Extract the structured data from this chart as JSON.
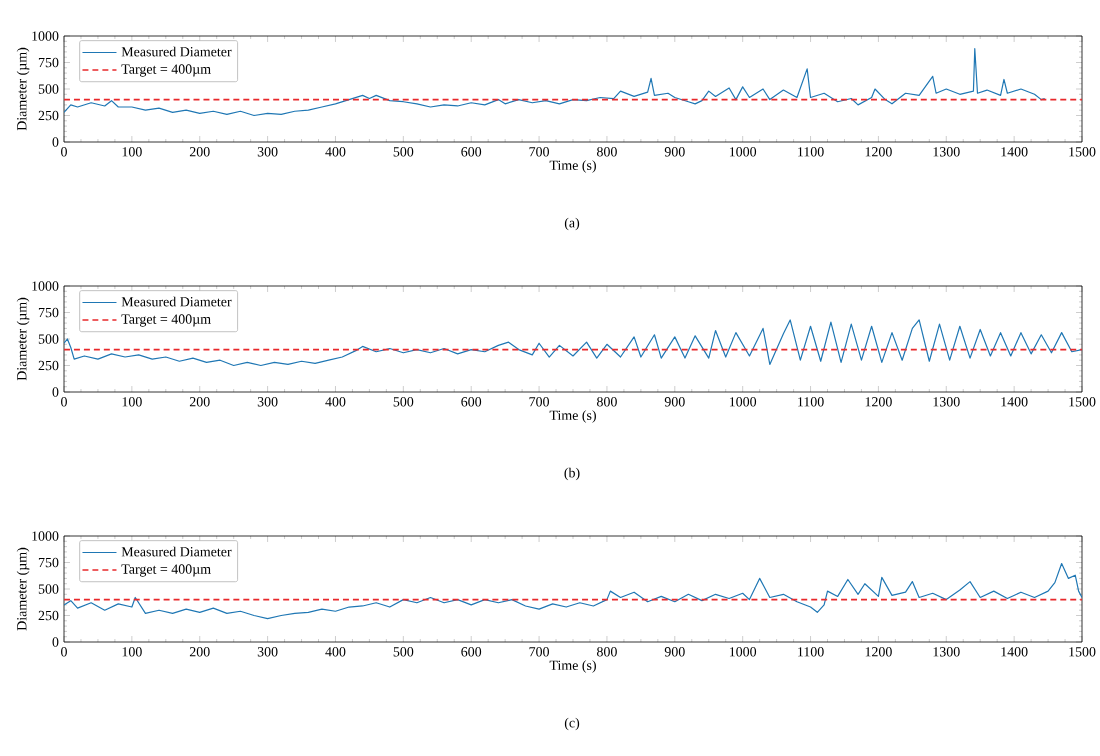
{
  "chart_data": [
    {
      "type": "line",
      "xlabel": "Time (s)",
      "ylabel": "Diameter (µm)",
      "xlim": [
        0,
        1500
      ],
      "ylim": [
        0,
        1000
      ],
      "xticks": [
        0,
        100,
        200,
        300,
        400,
        500,
        600,
        700,
        800,
        900,
        1000,
        1100,
        1200,
        1300,
        1400,
        1500
      ],
      "yticks": [
        0,
        250,
        500,
        750,
        1000
      ],
      "legend": "top left",
      "annotations": [
        "(a)"
      ],
      "series": [
        {
          "name": "Measured Diameter",
          "color": "#1f77b4",
          "x": [
            0,
            10,
            20,
            40,
            60,
            70,
            80,
            100,
            120,
            140,
            160,
            180,
            200,
            220,
            240,
            260,
            280,
            300,
            320,
            340,
            360,
            380,
            400,
            420,
            440,
            450,
            460,
            480,
            500,
            520,
            540,
            560,
            580,
            600,
            620,
            640,
            650,
            670,
            690,
            710,
            730,
            750,
            770,
            790,
            810,
            820,
            840,
            860,
            865,
            870,
            890,
            900,
            920,
            930,
            940,
            950,
            960,
            980,
            990,
            1000,
            1010,
            1030,
            1040,
            1060,
            1080,
            1095,
            1100,
            1120,
            1140,
            1160,
            1170,
            1190,
            1195,
            1210,
            1220,
            1240,
            1260,
            1280,
            1285,
            1300,
            1320,
            1340,
            1342,
            1346,
            1360,
            1380,
            1385,
            1390,
            1410,
            1430,
            1440,
            1445
          ],
          "values": [
            280,
            350,
            330,
            370,
            340,
            390,
            330,
            330,
            300,
            320,
            280,
            300,
            270,
            290,
            260,
            290,
            250,
            270,
            260,
            290,
            300,
            330,
            360,
            400,
            440,
            410,
            440,
            390,
            380,
            360,
            330,
            350,
            340,
            370,
            350,
            400,
            360,
            400,
            370,
            390,
            360,
            400,
            390,
            420,
            410,
            480,
            430,
            470,
            600,
            440,
            460,
            420,
            380,
            360,
            390,
            480,
            430,
            510,
            400,
            520,
            420,
            500,
            400,
            490,
            420,
            690,
            420,
            460,
            380,
            410,
            350,
            420,
            500,
            400,
            360,
            460,
            440,
            620,
            460,
            500,
            450,
            480,
            880,
            460,
            490,
            440,
            590,
            460,
            500,
            450,
            400,
            410
          ]
        }
      ],
      "ref_lines": [
        {
          "axis": "y",
          "value": 400,
          "label": "Target = 400µm",
          "color": "#e8282b",
          "line_style": "dashed"
        }
      ]
    },
    {
      "type": "line",
      "xlabel": "Time (s)",
      "ylabel": "Diameter (µm)",
      "xlim": [
        0,
        1500
      ],
      "ylim": [
        0,
        1000
      ],
      "xticks": [
        0,
        100,
        200,
        300,
        400,
        500,
        600,
        700,
        800,
        900,
        1000,
        1100,
        1200,
        1300,
        1400,
        1500
      ],
      "yticks": [
        0,
        250,
        500,
        750,
        1000
      ],
      "legend": "top left",
      "annotations": [
        "(b)"
      ],
      "series": [
        {
          "name": "Measured Diameter",
          "color": "#1f77b4",
          "x": [
            0,
            5,
            10,
            15,
            30,
            50,
            70,
            90,
            110,
            130,
            150,
            170,
            190,
            210,
            230,
            250,
            270,
            290,
            310,
            330,
            350,
            370,
            390,
            410,
            430,
            440,
            460,
            480,
            500,
            520,
            540,
            560,
            580,
            600,
            620,
            640,
            655,
            670,
            690,
            700,
            715,
            730,
            750,
            770,
            785,
            800,
            820,
            840,
            850,
            870,
            880,
            900,
            915,
            930,
            950,
            960,
            975,
            990,
            1010,
            1030,
            1040,
            1060,
            1070,
            1085,
            1100,
            1115,
            1130,
            1145,
            1160,
            1175,
            1190,
            1205,
            1220,
            1235,
            1250,
            1260,
            1275,
            1290,
            1305,
            1320,
            1335,
            1350,
            1365,
            1380,
            1395,
            1410,
            1425,
            1440,
            1455,
            1470,
            1485,
            1500
          ],
          "values": [
            460,
            500,
            420,
            310,
            340,
            310,
            360,
            330,
            350,
            310,
            330,
            290,
            320,
            280,
            300,
            250,
            280,
            250,
            280,
            260,
            290,
            270,
            300,
            330,
            390,
            430,
            380,
            410,
            370,
            400,
            370,
            410,
            360,
            400,
            380,
            440,
            470,
            400,
            350,
            460,
            330,
            440,
            340,
            470,
            320,
            450,
            330,
            520,
            330,
            540,
            320,
            520,
            320,
            530,
            320,
            580,
            330,
            560,
            340,
            600,
            260,
            550,
            680,
            300,
            620,
            290,
            660,
            280,
            640,
            300,
            620,
            280,
            560,
            300,
            600,
            680,
            290,
            640,
            300,
            620,
            320,
            590,
            340,
            560,
            340,
            560,
            360,
            540,
            370,
            560,
            380,
            400
          ]
        }
      ],
      "ref_lines": [
        {
          "axis": "y",
          "value": 400,
          "label": "Target = 400µm",
          "color": "#e8282b",
          "line_style": "dashed"
        }
      ]
    },
    {
      "type": "line",
      "xlabel": "Time (s)",
      "ylabel": "Diameter (µm)",
      "xlim": [
        0,
        1500
      ],
      "ylim": [
        0,
        1000
      ],
      "xticks": [
        0,
        100,
        200,
        300,
        400,
        500,
        600,
        700,
        800,
        900,
        1000,
        1100,
        1200,
        1300,
        1400,
        1500
      ],
      "yticks": [
        0,
        250,
        500,
        750,
        1000
      ],
      "legend": "top left",
      "annotations": [
        "(c)"
      ],
      "series": [
        {
          "name": "Measured Diameter",
          "color": "#1f77b4",
          "x": [
            0,
            10,
            20,
            40,
            60,
            80,
            100,
            105,
            120,
            140,
            160,
            180,
            200,
            220,
            240,
            260,
            280,
            300,
            320,
            340,
            360,
            380,
            400,
            420,
            440,
            460,
            480,
            500,
            520,
            540,
            560,
            580,
            600,
            620,
            640,
            660,
            680,
            700,
            720,
            740,
            760,
            780,
            800,
            805,
            820,
            840,
            860,
            880,
            900,
            920,
            940,
            960,
            980,
            1000,
            1010,
            1025,
            1040,
            1060,
            1080,
            1100,
            1110,
            1120,
            1125,
            1140,
            1155,
            1170,
            1180,
            1200,
            1205,
            1220,
            1240,
            1250,
            1260,
            1280,
            1300,
            1320,
            1335,
            1350,
            1370,
            1390,
            1410,
            1430,
            1450,
            1460,
            1470,
            1480,
            1490,
            1495,
            1500
          ],
          "values": [
            350,
            390,
            320,
            370,
            300,
            360,
            330,
            420,
            270,
            300,
            270,
            310,
            280,
            320,
            270,
            290,
            250,
            220,
            250,
            270,
            280,
            310,
            290,
            330,
            340,
            370,
            330,
            400,
            370,
            420,
            370,
            400,
            350,
            400,
            370,
            400,
            340,
            310,
            360,
            330,
            370,
            340,
            400,
            480,
            420,
            470,
            380,
            430,
            380,
            450,
            390,
            450,
            410,
            460,
            400,
            600,
            420,
            450,
            380,
            330,
            280,
            350,
            480,
            430,
            590,
            450,
            550,
            430,
            610,
            440,
            470,
            570,
            420,
            460,
            400,
            490,
            570,
            420,
            480,
            410,
            470,
            420,
            480,
            560,
            740,
            600,
            630,
            480,
            420
          ]
        }
      ],
      "ref_lines": [
        {
          "axis": "y",
          "value": 400,
          "label": "Target = 400µm",
          "color": "#e8282b",
          "line_style": "dashed"
        }
      ]
    }
  ]
}
